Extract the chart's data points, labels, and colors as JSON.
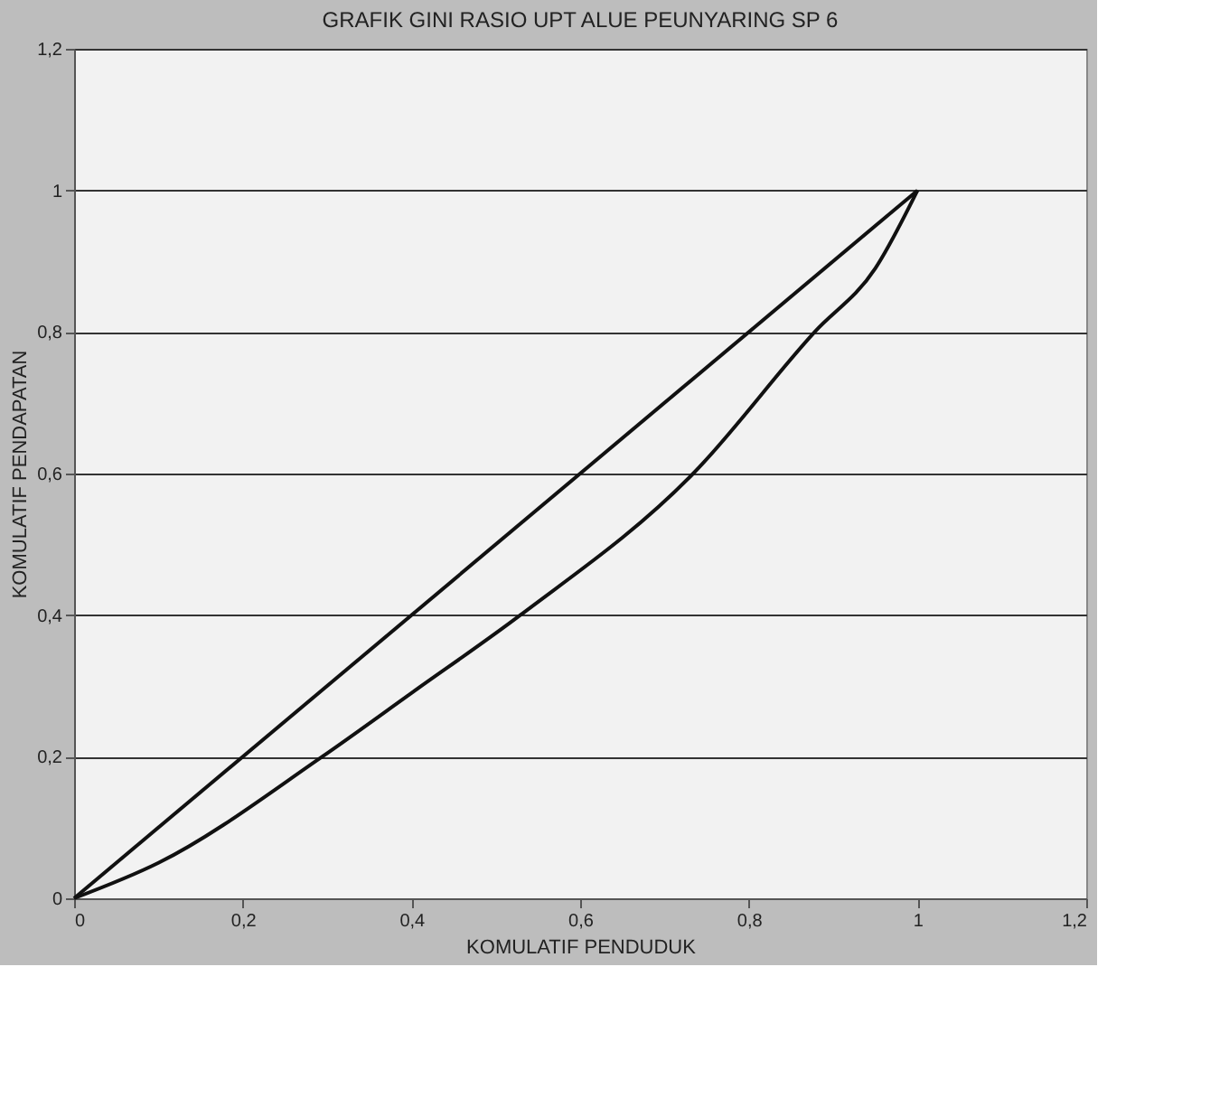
{
  "chart_data": {
    "type": "line",
    "title": "GRAFIK GINI RASIO UPT ALUE PEUNYARING SP 6",
    "xlabel": "KOMULATIF PENDUDUK",
    "ylabel": "KOMULATIF PENDAPATAN",
    "series": [
      {
        "color": "#111111",
        "x": [
          0,
          1
        ],
        "values": [
          0,
          1
        ]
      },
      {
        "color": "#111111",
        "x": [
          0,
          0.1,
          0.294,
          0.4,
          0.529,
          0.734,
          0.878,
          0.95,
          1
        ],
        "values": [
          0,
          0.05,
          0.2,
          0.29,
          0.4,
          0.6,
          0.8,
          0.89,
          1
        ]
      }
    ],
    "xlim": [
      0,
      1.2
    ],
    "ylim": [
      0,
      1.2
    ],
    "xticks": [
      0,
      {
        "value": 0.2,
        "label": "0,2"
      },
      {
        "value": 0.4,
        "label": "0,4"
      },
      {
        "value": 0.6,
        "label": "0,6"
      },
      {
        "value": 0.8,
        "label": "0,8"
      },
      1,
      {
        "value": 1.2,
        "label": "1,2"
      }
    ],
    "yticks": [
      0,
      {
        "value": 0.2,
        "label": "0,2"
      },
      {
        "value": 0.4,
        "label": "0,4"
      },
      {
        "value": 0.6,
        "label": "0,6"
      },
      {
        "value": 0.8,
        "label": "0,8"
      },
      1,
      {
        "value": 1.2,
        "label": "1,2"
      }
    ],
    "grid": "y",
    "marker": "none",
    "line_style": "solid"
  }
}
